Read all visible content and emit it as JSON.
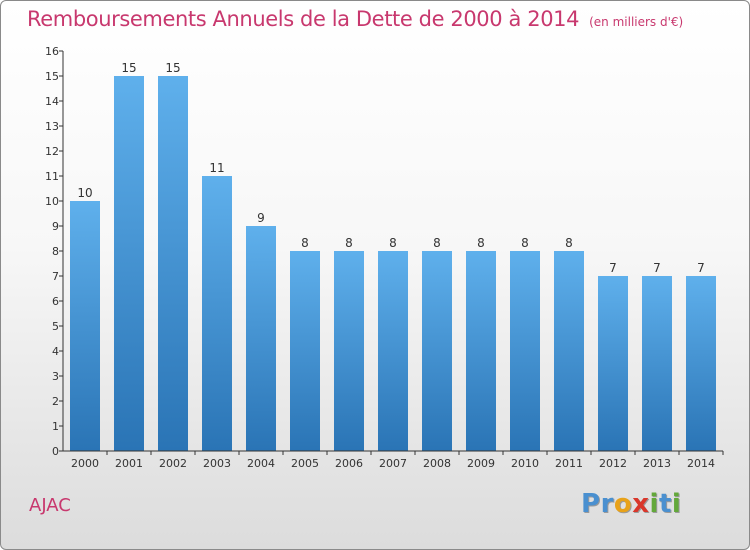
{
  "title": "Remboursements Annuels de la Dette de 2000 à 2014",
  "unit_note": "(en milliers d'€)",
  "commune": "AJAC",
  "brand": {
    "letters": [
      {
        "ch": "P",
        "color": "#4a90d0"
      },
      {
        "ch": "r",
        "color": "#4a90d0"
      },
      {
        "ch": "o",
        "color": "#e8a21a"
      },
      {
        "ch": "x",
        "color": "#d9372b"
      },
      {
        "ch": "i",
        "color": "#63a83a"
      },
      {
        "ch": "t",
        "color": "#4a90d0"
      },
      {
        "ch": "i",
        "color": "#63a83a"
      }
    ]
  },
  "colors": {
    "bar_top": "#5fb0ec",
    "bar_bottom": "#2a74b5",
    "title": "#c8386e",
    "axis": "#333333"
  },
  "chart_data": {
    "type": "bar",
    "title": "Remboursements Annuels de la Dette de 2000 à 2014",
    "xlabel": "",
    "ylabel": "",
    "categories": [
      "2000",
      "2001",
      "2002",
      "2003",
      "2004",
      "2005",
      "2006",
      "2007",
      "2008",
      "2009",
      "2010",
      "2011",
      "2012",
      "2013",
      "2014"
    ],
    "values": [
      10,
      15,
      15,
      11,
      9,
      8,
      8,
      8,
      8,
      8,
      8,
      8,
      7,
      7,
      7
    ],
    "data_labels": [
      "10",
      "15",
      "15",
      "11",
      "9",
      "8",
      "8",
      "8",
      "8",
      "8",
      "8",
      "8",
      "7",
      "7",
      "7"
    ],
    "ylim": [
      0,
      16
    ],
    "yticks": [
      0,
      1,
      2,
      3,
      4,
      5,
      6,
      7,
      8,
      9,
      10,
      11,
      12,
      13,
      14,
      15,
      16
    ],
    "grid": false,
    "legend": "none"
  }
}
